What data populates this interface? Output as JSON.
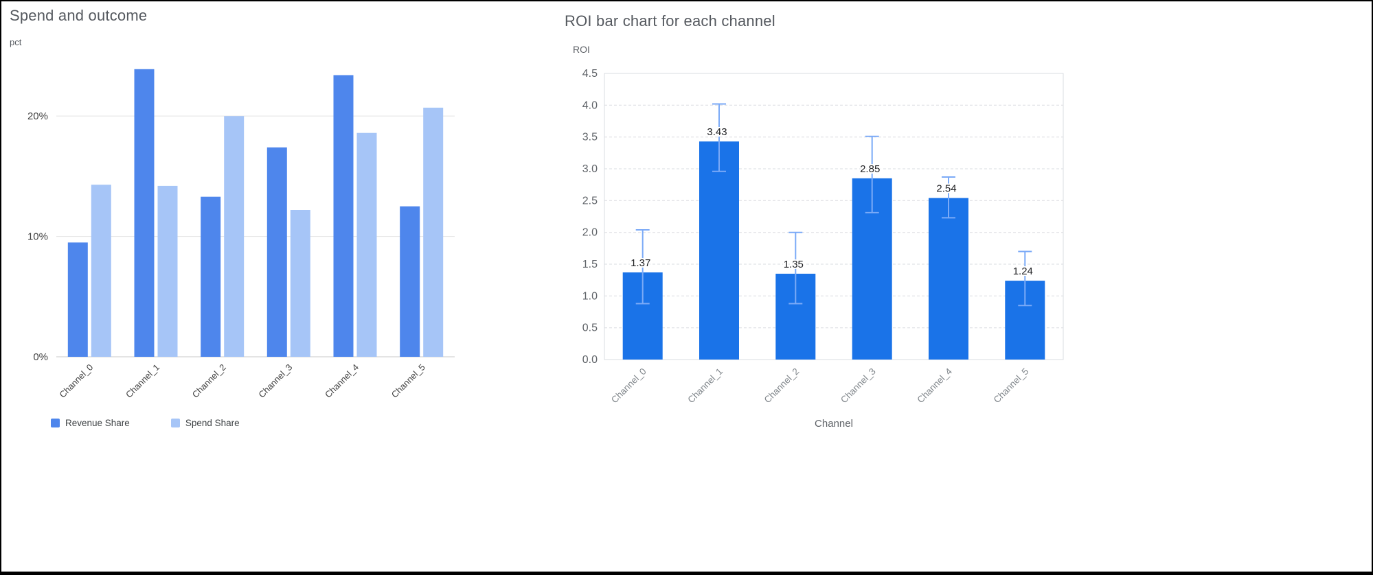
{
  "chart_data": [
    {
      "type": "bar",
      "title": "Spend and outcome",
      "ylabel": "pct",
      "xlabel": "",
      "categories": [
        "Channel_0",
        "Channel_1",
        "Channel_2",
        "Channel_3",
        "Channel_4",
        "Channel_5"
      ],
      "series": [
        {
          "name": "Revenue Share",
          "color": "#4e86ec",
          "values": [
            9.5,
            23.9,
            13.3,
            17.4,
            23.4,
            12.5
          ]
        },
        {
          "name": "Spend Share",
          "color": "#a6c5f7",
          "values": [
            14.3,
            14.2,
            20.0,
            12.2,
            18.6,
            20.7
          ]
        }
      ],
      "ylim": [
        0,
        24
      ],
      "yticks": [
        0,
        10,
        20
      ],
      "ytick_labels": [
        "0%",
        "10%",
        "20%"
      ],
      "grid": "solid-horizontal",
      "legend_position": "bottom"
    },
    {
      "type": "bar",
      "title": "ROI bar chart for each channel",
      "ylabel": "ROI",
      "xlabel": "Channel",
      "categories": [
        "Channel_0",
        "Channel_1",
        "Channel_2",
        "Channel_3",
        "Channel_4",
        "Channel_5"
      ],
      "values": [
        1.37,
        3.43,
        1.35,
        2.85,
        2.54,
        1.24
      ],
      "value_labels": [
        "1.37",
        "3.43",
        "1.35",
        "2.85",
        "2.54",
        "1.24"
      ],
      "error_low": [
        0.88,
        2.96,
        0.88,
        2.31,
        2.23,
        0.85
      ],
      "error_high": [
        2.04,
        4.02,
        2.0,
        3.51,
        2.87,
        1.7
      ],
      "bar_color": "#1a73e8",
      "error_color": "#7baaf7",
      "ylim": [
        0,
        4.5
      ],
      "yticks": [
        0,
        0.5,
        1.0,
        1.5,
        2.0,
        2.5,
        3.0,
        3.5,
        4.0,
        4.5
      ],
      "ytick_labels": [
        "0.0",
        "0.5",
        "1.0",
        "1.5",
        "2.0",
        "2.5",
        "3.0",
        "3.5",
        "4.0",
        "4.5"
      ],
      "grid": "dashed-horizontal",
      "plot_border": true,
      "legend_position": "none"
    }
  ]
}
